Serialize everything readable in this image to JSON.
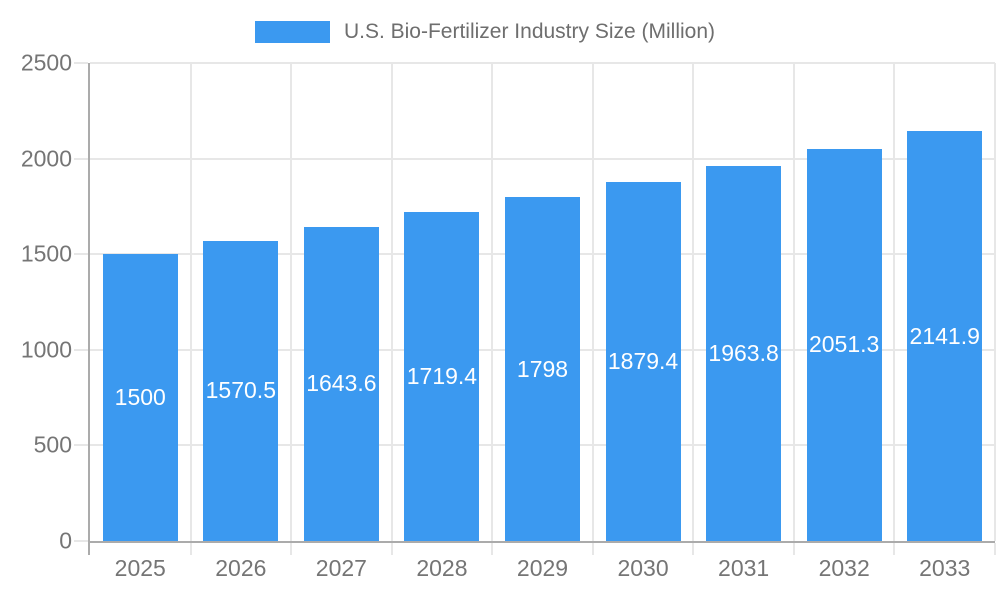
{
  "chart_data": {
    "type": "bar",
    "title": "U.S. Bio-Fertilizer Industry Size (Million)",
    "categories": [
      "2025",
      "2026",
      "2027",
      "2028",
      "2029",
      "2030",
      "2031",
      "2032",
      "2033"
    ],
    "values": [
      1500,
      1570.5,
      1643.6,
      1719.4,
      1798,
      1879.4,
      1963.8,
      2051.3,
      2141.9
    ],
    "value_labels": [
      "1500",
      "1570.5",
      "1643.6",
      "1719.4",
      "1798",
      "1879.4",
      "1963.8",
      "2051.3",
      "2141.9"
    ],
    "xlabel": "",
    "ylabel": "",
    "ylim": [
      0,
      2500
    ],
    "yticks": [
      0,
      500,
      1000,
      1500,
      2000,
      2500
    ],
    "ytick_labels": [
      "0",
      "500",
      "1000",
      "1500",
      "2000",
      "2500"
    ],
    "grid": true,
    "legend_position": "top",
    "colors": {
      "bar": "#3B99F0",
      "gridline": "#E7E7E7",
      "axis_line": "#ABABAB",
      "tick_label": "#757575",
      "value_label": "#FFFFFF",
      "legend_text": "#6E6E6E",
      "background": "#FFFFFF"
    }
  }
}
